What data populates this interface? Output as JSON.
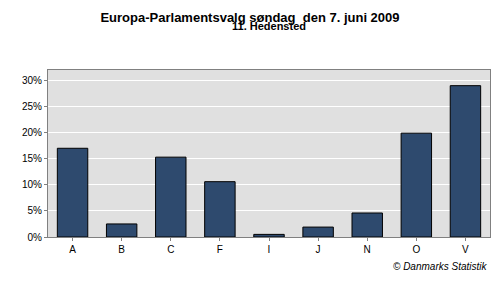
{
  "chart_data": {
    "type": "bar",
    "title": "Europa-Parlamentsvalg søndag  den 7. juni 2009",
    "subtitle": "11. Hedensted",
    "annotations": [
      "© Danmarks Statistik"
    ],
    "categories": [
      "A",
      "B",
      "C",
      "F",
      "I",
      "J",
      "N",
      "O",
      "V"
    ],
    "values": [
      17.0,
      2.5,
      15.3,
      10.6,
      0.5,
      1.9,
      4.6,
      19.9,
      29.0
    ],
    "color": "#2e4a6e",
    "ylim": [
      0,
      32
    ],
    "yticks": [
      {
        "value": 0,
        "label": "0%"
      },
      {
        "value": 5,
        "label": "5%"
      },
      {
        "value": 10,
        "label": "10%"
      },
      {
        "value": 15,
        "label": "15%"
      },
      {
        "value": 20,
        "label": "20%"
      },
      {
        "value": 25,
        "label": "25%"
      },
      {
        "value": 30,
        "label": "30%"
      }
    ],
    "grid": true
  }
}
